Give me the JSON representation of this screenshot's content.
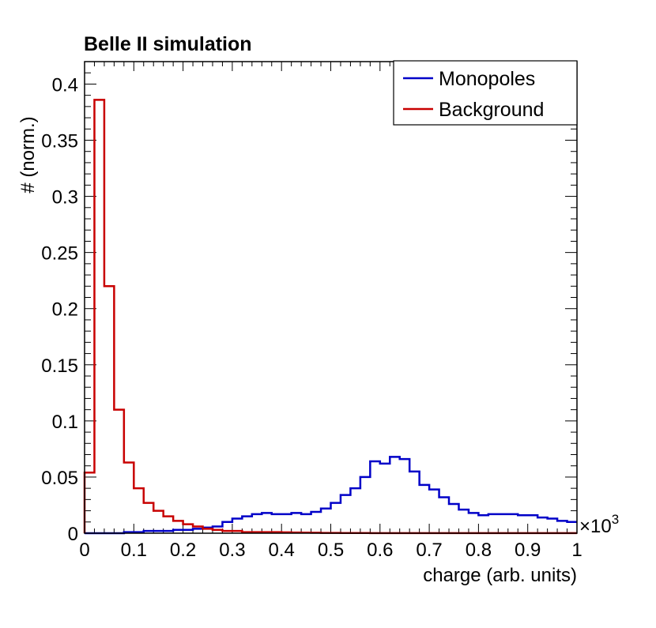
{
  "chart_data": {
    "type": "histogram",
    "title": "Belle II simulation",
    "xlabel": "charge (arb. units)",
    "ylabel": "# (norm.)",
    "x_multiplier_label": "×10",
    "x_multiplier_exponent": "3",
    "xlim": [
      0,
      1
    ],
    "ylim": [
      0,
      0.42
    ],
    "bin_width": 0.02,
    "x_ticks": [
      {
        "value": 0,
        "label": "0"
      },
      {
        "value": 0.1,
        "label": "0.1"
      },
      {
        "value": 0.2,
        "label": "0.2"
      },
      {
        "value": 0.3,
        "label": "0.3"
      },
      {
        "value": 0.4,
        "label": "0.4"
      },
      {
        "value": 0.5,
        "label": "0.5"
      },
      {
        "value": 0.6,
        "label": "0.6"
      },
      {
        "value": 0.7,
        "label": "0.7"
      },
      {
        "value": 0.8,
        "label": "0.8"
      },
      {
        "value": 0.9,
        "label": "0.9"
      },
      {
        "value": 1,
        "label": "1"
      }
    ],
    "y_ticks": [
      {
        "value": 0,
        "label": "0"
      },
      {
        "value": 0.05,
        "label": "0.05"
      },
      {
        "value": 0.1,
        "label": "0.1"
      },
      {
        "value": 0.15,
        "label": "0.15"
      },
      {
        "value": 0.2,
        "label": "0.2"
      },
      {
        "value": 0.25,
        "label": "0.25"
      },
      {
        "value": 0.3,
        "label": "0.3"
      },
      {
        "value": 0.35,
        "label": "0.35"
      },
      {
        "value": 0.4,
        "label": "0.4"
      }
    ],
    "legend_position": "top-right",
    "series": [
      {
        "name": "Monopoles",
        "color": "#0000c8",
        "values": [
          0.0,
          0.0,
          0.0,
          0.0,
          0.001,
          0.001,
          0.002,
          0.002,
          0.002,
          0.003,
          0.003,
          0.004,
          0.005,
          0.006,
          0.01,
          0.013,
          0.015,
          0.017,
          0.018,
          0.017,
          0.017,
          0.018,
          0.017,
          0.019,
          0.022,
          0.027,
          0.034,
          0.04,
          0.05,
          0.064,
          0.062,
          0.068,
          0.066,
          0.055,
          0.043,
          0.039,
          0.032,
          0.026,
          0.021,
          0.018,
          0.016,
          0.017,
          0.017,
          0.017,
          0.016,
          0.016,
          0.014,
          0.013,
          0.011,
          0.01
        ]
      },
      {
        "name": "Background",
        "color": "#c80000",
        "values": [
          0.054,
          0.386,
          0.22,
          0.11,
          0.063,
          0.04,
          0.027,
          0.02,
          0.015,
          0.011,
          0.008,
          0.006,
          0.004,
          0.003,
          0.002,
          0.002,
          0.001,
          0.001,
          0.001,
          0.001,
          0.0008,
          0.0006,
          0.0005,
          0.0004,
          0.0003,
          0.0003,
          0.0002,
          0.0002,
          0.0002,
          0.0001,
          0.0001,
          0.0001,
          0.0001,
          0.0001,
          0.0001,
          0.0001,
          0.0001,
          0.0001,
          0.0001,
          0.0001,
          0.0001,
          0.0001,
          0.0001,
          0.0001,
          0.0001,
          0.0001,
          0.0001,
          0.0001,
          0.0001,
          0.0001
        ]
      }
    ]
  }
}
